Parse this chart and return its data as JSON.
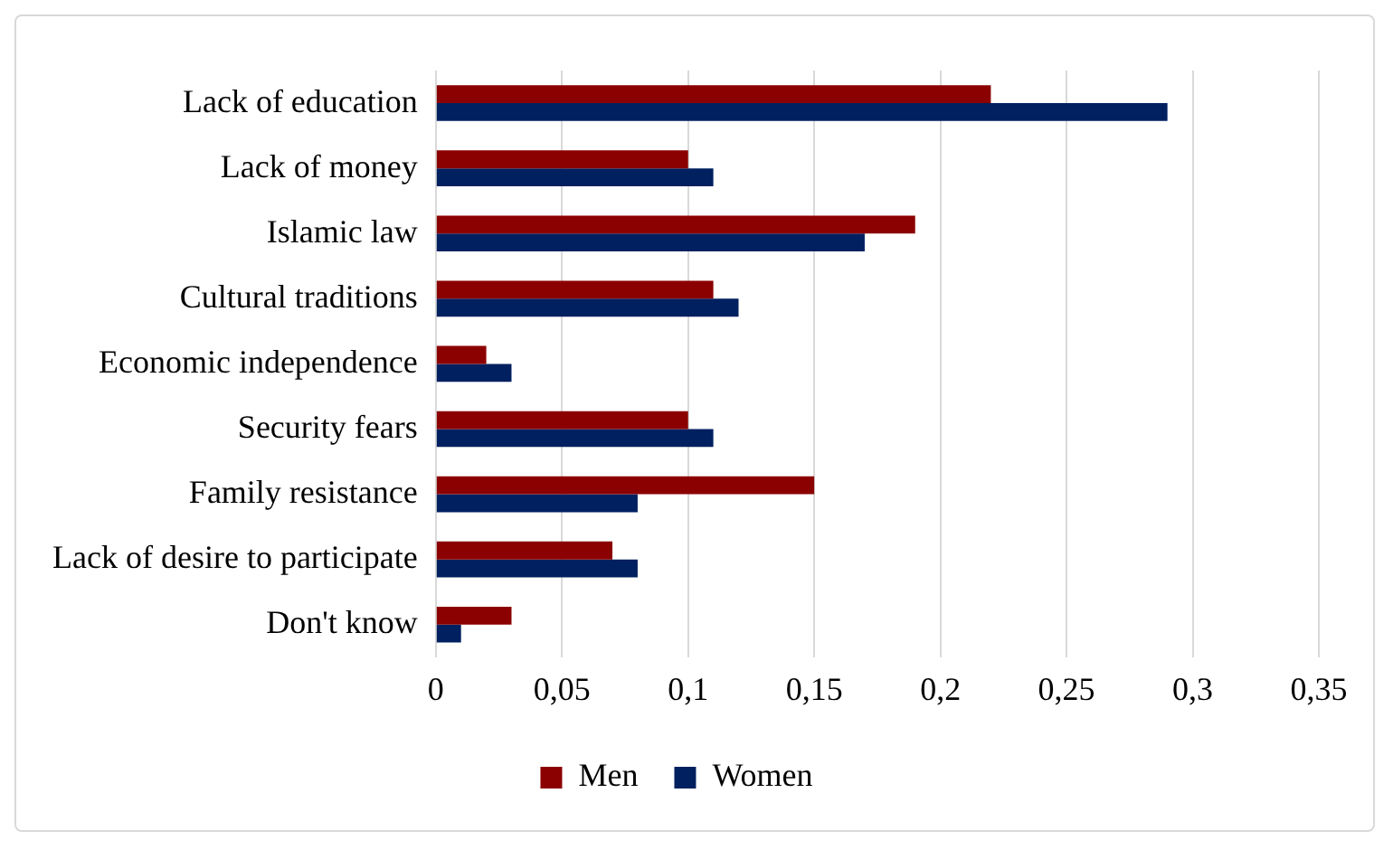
{
  "chart_data": {
    "type": "bar",
    "orientation": "horizontal",
    "categories": [
      "Lack of education",
      "Lack of money",
      "Islamic law",
      "Cultural traditions",
      "Economic independence",
      "Security fears",
      "Family resistance",
      "Lack of desire to participate",
      "Don't know"
    ],
    "series": [
      {
        "name": "Men",
        "color": "#8b0000",
        "values": [
          0.22,
          0.1,
          0.19,
          0.11,
          0.02,
          0.1,
          0.15,
          0.07,
          0.03
        ]
      },
      {
        "name": "Women",
        "color": "#002060",
        "values": [
          0.29,
          0.11,
          0.17,
          0.12,
          0.03,
          0.11,
          0.08,
          0.08,
          0.01
        ]
      }
    ],
    "xlim": [
      0,
      0.35
    ],
    "xticks": [
      0,
      {
        "value": 0.05,
        "label": "0,05"
      },
      {
        "value": 0.1,
        "label": "0,1"
      },
      {
        "value": 0.15,
        "label": "0,15"
      },
      {
        "value": 0.2,
        "label": "0,2"
      },
      {
        "value": 0.25,
        "label": "0,25"
      },
      {
        "value": 0.3,
        "label": "0,3"
      },
      {
        "value": 0.35,
        "label": "0,35"
      }
    ],
    "grid": "x",
    "legend": "bottom"
  }
}
